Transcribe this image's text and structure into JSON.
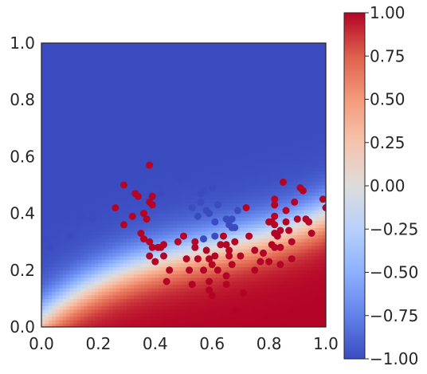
{
  "chart_data": {
    "type": "scatter",
    "title": "",
    "xlabel": "",
    "ylabel": "",
    "xlim": [
      0,
      1
    ],
    "ylim": [
      0,
      1
    ],
    "xticks": [
      "0.0",
      "0.2",
      "0.4",
      "0.6",
      "0.8",
      "1.0"
    ],
    "yticks": [
      "0.0",
      "0.2",
      "0.4",
      "0.6",
      "0.8",
      "1.0"
    ],
    "grid": false,
    "background": "decision-function heatmap",
    "colormap": "coolwarm",
    "colorbar": {
      "range": [
        -1,
        1
      ],
      "ticks": [
        "1.00",
        "0.75",
        "0.50",
        "0.25",
        "0.00",
        "−0.25",
        "−0.50",
        "−0.75",
        "−1.00"
      ]
    },
    "colors": {
      "class_blue": "#3b4cc0",
      "class_red": "#b40426"
    },
    "series": [
      {
        "color": "#3b4cc0",
        "points": [
          [
            0.0,
            0.31
          ],
          [
            0.03,
            0.28
          ],
          [
            0.03,
            0.41
          ],
          [
            0.04,
            0.41
          ],
          [
            0.06,
            0.52
          ],
          [
            0.08,
            0.57
          ],
          [
            0.08,
            0.39
          ],
          [
            0.09,
            0.5
          ],
          [
            0.09,
            0.59
          ],
          [
            0.1,
            0.53
          ],
          [
            0.1,
            0.47
          ],
          [
            0.11,
            0.52
          ],
          [
            0.1,
            0.32
          ],
          [
            0.12,
            0.45
          ],
          [
            0.12,
            0.54
          ],
          [
            0.13,
            0.49
          ],
          [
            0.13,
            0.42
          ],
          [
            0.14,
            0.39
          ],
          [
            0.15,
            0.51
          ],
          [
            0.15,
            0.61
          ],
          [
            0.16,
            0.51
          ],
          [
            0.17,
            0.52
          ],
          [
            0.17,
            0.46
          ],
          [
            0.18,
            0.38
          ],
          [
            0.19,
            0.56
          ],
          [
            0.2,
            0.58
          ],
          [
            0.22,
            0.55
          ],
          [
            0.23,
            0.6
          ],
          [
            0.23,
            0.65
          ],
          [
            0.28,
            0.58
          ],
          [
            0.28,
            0.54
          ],
          [
            0.3,
            0.53
          ],
          [
            0.31,
            0.57
          ],
          [
            0.31,
            0.61
          ],
          [
            0.31,
            0.63
          ],
          [
            0.31,
            0.72
          ],
          [
            0.32,
            0.6
          ],
          [
            0.33,
            0.63
          ],
          [
            0.34,
            0.64
          ],
          [
            0.34,
            0.55
          ],
          [
            0.35,
            0.6
          ],
          [
            0.36,
            0.52
          ],
          [
            0.36,
            0.63
          ],
          [
            0.37,
            0.61
          ],
          [
            0.37,
            0.58
          ],
          [
            0.38,
            0.55
          ],
          [
            0.38,
            0.47
          ],
          [
            0.39,
            0.57
          ],
          [
            0.4,
            0.63
          ],
          [
            0.41,
            0.6
          ],
          [
            0.42,
            0.47
          ],
          [
            0.42,
            0.61
          ],
          [
            0.43,
            0.68
          ],
          [
            0.43,
            0.59
          ],
          [
            0.45,
            0.63
          ],
          [
            0.46,
            0.61
          ],
          [
            0.48,
            0.54
          ],
          [
            0.48,
            0.52
          ],
          [
            0.49,
            0.56
          ],
          [
            0.49,
            0.62
          ],
          [
            0.5,
            0.55
          ],
          [
            0.51,
            0.53
          ],
          [
            0.52,
            0.66
          ],
          [
            0.53,
            0.6
          ],
          [
            0.53,
            0.65
          ],
          [
            0.53,
            0.42
          ],
          [
            0.54,
            0.59
          ],
          [
            0.55,
            0.56
          ],
          [
            0.55,
            0.39
          ],
          [
            0.56,
            0.44
          ],
          [
            0.56,
            0.47
          ],
          [
            0.57,
            0.48
          ],
          [
            0.57,
            0.31
          ],
          [
            0.58,
            0.41
          ],
          [
            0.59,
            0.4
          ],
          [
            0.6,
            0.49
          ],
          [
            0.61,
            0.32
          ],
          [
            0.61,
            0.37
          ],
          [
            0.62,
            0.43
          ],
          [
            0.65,
            0.38
          ],
          [
            0.66,
            0.36
          ],
          [
            0.67,
            0.35
          ],
          [
            0.67,
            0.38
          ],
          [
            0.68,
            0.35
          ],
          [
            0.69,
            0.41
          ]
        ]
      },
      {
        "color": "#b40426",
        "points": [
          [
            0.26,
            0.42
          ],
          [
            0.29,
            0.5
          ],
          [
            0.29,
            0.36
          ],
          [
            0.32,
            0.39
          ],
          [
            0.33,
            0.47
          ],
          [
            0.34,
            0.46
          ],
          [
            0.35,
            0.33
          ],
          [
            0.36,
            0.31
          ],
          [
            0.36,
            0.4
          ],
          [
            0.37,
            0.38
          ],
          [
            0.38,
            0.44
          ],
          [
            0.38,
            0.3
          ],
          [
            0.38,
            0.57
          ],
          [
            0.38,
            0.25
          ],
          [
            0.39,
            0.46
          ],
          [
            0.39,
            0.43
          ],
          [
            0.39,
            0.28
          ],
          [
            0.4,
            0.23
          ],
          [
            0.41,
            0.28
          ],
          [
            0.42,
            0.28
          ],
          [
            0.43,
            0.29
          ],
          [
            0.43,
            0.25
          ],
          [
            0.44,
            0.16
          ],
          [
            0.45,
            0.2
          ],
          [
            0.48,
            0.3
          ],
          [
            0.5,
            0.32
          ],
          [
            0.51,
            0.24
          ],
          [
            0.52,
            0.2
          ],
          [
            0.53,
            0.15
          ],
          [
            0.54,
            0.3
          ],
          [
            0.54,
            0.28
          ],
          [
            0.55,
            0.24
          ],
          [
            0.57,
            0.2
          ],
          [
            0.58,
            0.27
          ],
          [
            0.59,
            0.24
          ],
          [
            0.59,
            0.16
          ],
          [
            0.59,
            0.13
          ],
          [
            0.6,
            0.11
          ],
          [
            0.6,
            0.22
          ],
          [
            0.61,
            0.25
          ],
          [
            0.62,
            0.2
          ],
          [
            0.63,
            0.29
          ],
          [
            0.64,
            0.32
          ],
          [
            0.65,
            0.29
          ],
          [
            0.65,
            0.15
          ],
          [
            0.65,
            0.18
          ],
          [
            0.66,
            0.27
          ],
          [
            0.66,
            0.25
          ],
          [
            0.67,
            0.22
          ],
          [
            0.68,
            0.3
          ],
          [
            0.68,
            0.06
          ],
          [
            0.7,
            0.25
          ],
          [
            0.71,
            0.12
          ],
          [
            0.72,
            0.42
          ],
          [
            0.73,
            0.32
          ],
          [
            0.75,
            0.27
          ],
          [
            0.75,
            0.2
          ],
          [
            0.77,
            0.23
          ],
          [
            0.78,
            0.26
          ],
          [
            0.8,
            0.37
          ],
          [
            0.8,
            0.23
          ],
          [
            0.81,
            0.37
          ],
          [
            0.81,
            0.29
          ],
          [
            0.82,
            0.39
          ],
          [
            0.82,
            0.43
          ],
          [
            0.82,
            0.36
          ],
          [
            0.82,
            0.45
          ],
          [
            0.82,
            0.33
          ],
          [
            0.82,
            0.28
          ],
          [
            0.83,
            0.32
          ],
          [
            0.84,
            0.28
          ],
          [
            0.84,
            0.34
          ],
          [
            0.84,
            0.22
          ],
          [
            0.85,
            0.51
          ],
          [
            0.86,
            0.41
          ],
          [
            0.86,
            0.37
          ],
          [
            0.87,
            0.34
          ],
          [
            0.88,
            0.3
          ],
          [
            0.88,
            0.24
          ],
          [
            0.89,
            0.44
          ],
          [
            0.9,
            0.38
          ],
          [
            0.91,
            0.49
          ],
          [
            0.92,
            0.48
          ],
          [
            0.93,
            0.38
          ],
          [
            0.94,
            0.37
          ],
          [
            0.95,
            0.33
          ],
          [
            0.99,
            0.45
          ],
          [
            1.0,
            0.42
          ]
        ]
      }
    ]
  }
}
